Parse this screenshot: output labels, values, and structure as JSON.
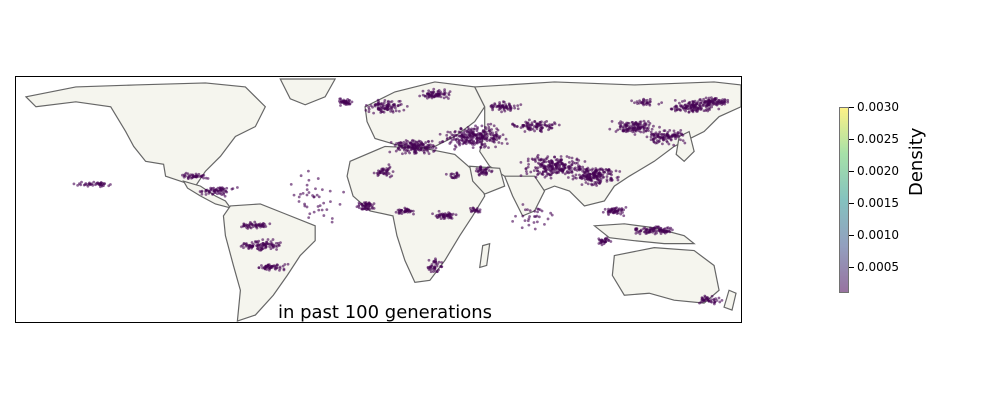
{
  "map": {
    "caption": "in past 100 generations",
    "land_color": "#f5f5ee",
    "coast_color": "#666666",
    "point_color": "#440154"
  },
  "colorbar": {
    "title": "Density",
    "ticks": [
      "0.0030",
      "0.0025",
      "0.0020",
      "0.0015",
      "0.0010",
      "0.0005"
    ],
    "tick_values": [
      0.003,
      0.0025,
      0.002,
      0.0015,
      0.001,
      0.0005
    ],
    "min": 0.0001,
    "max": 0.003,
    "colormap": "viridis"
  },
  "chart_data": {
    "type": "scatter",
    "title": "",
    "xlabel": "",
    "ylabel": "",
    "annotation": "in past 100 generations",
    "colorbar_label": "Density",
    "colorbar_range": [
      0.0001,
      0.003
    ]
  }
}
